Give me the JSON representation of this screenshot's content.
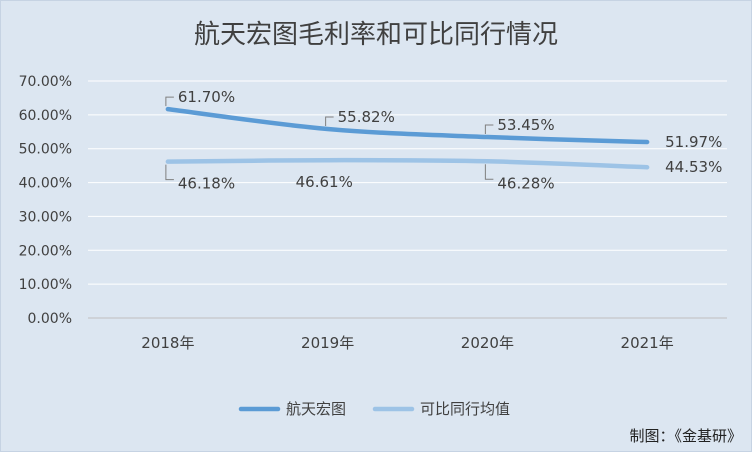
{
  "chart_data": {
    "type": "line",
    "title": "航天宏图毛利率和可比同行情况",
    "categories": [
      "2018年",
      "2019年",
      "2020年",
      "2021年"
    ],
    "series": [
      {
        "name": "航天宏图",
        "values": [
          61.7,
          55.82,
          53.45,
          51.97
        ],
        "labels": [
          "61.70%",
          "55.82%",
          "53.45%",
          "51.97%"
        ],
        "color": "#5b9bd5"
      },
      {
        "name": "可比同行均值",
        "values": [
          46.18,
          46.61,
          46.28,
          44.53
        ],
        "labels": [
          "46.18%",
          "46.61%",
          "46.28%",
          "44.53%"
        ],
        "color": "#9dc3e6"
      }
    ],
    "y_ticks": [
      "0.00%",
      "10.00%",
      "20.00%",
      "30.00%",
      "40.00%",
      "50.00%",
      "60.00%",
      "70.00%"
    ],
    "ylim": [
      0,
      70
    ],
    "grid": true,
    "legend_position": "bottom"
  },
  "footer": {
    "credit": "制图：《金基研》"
  }
}
